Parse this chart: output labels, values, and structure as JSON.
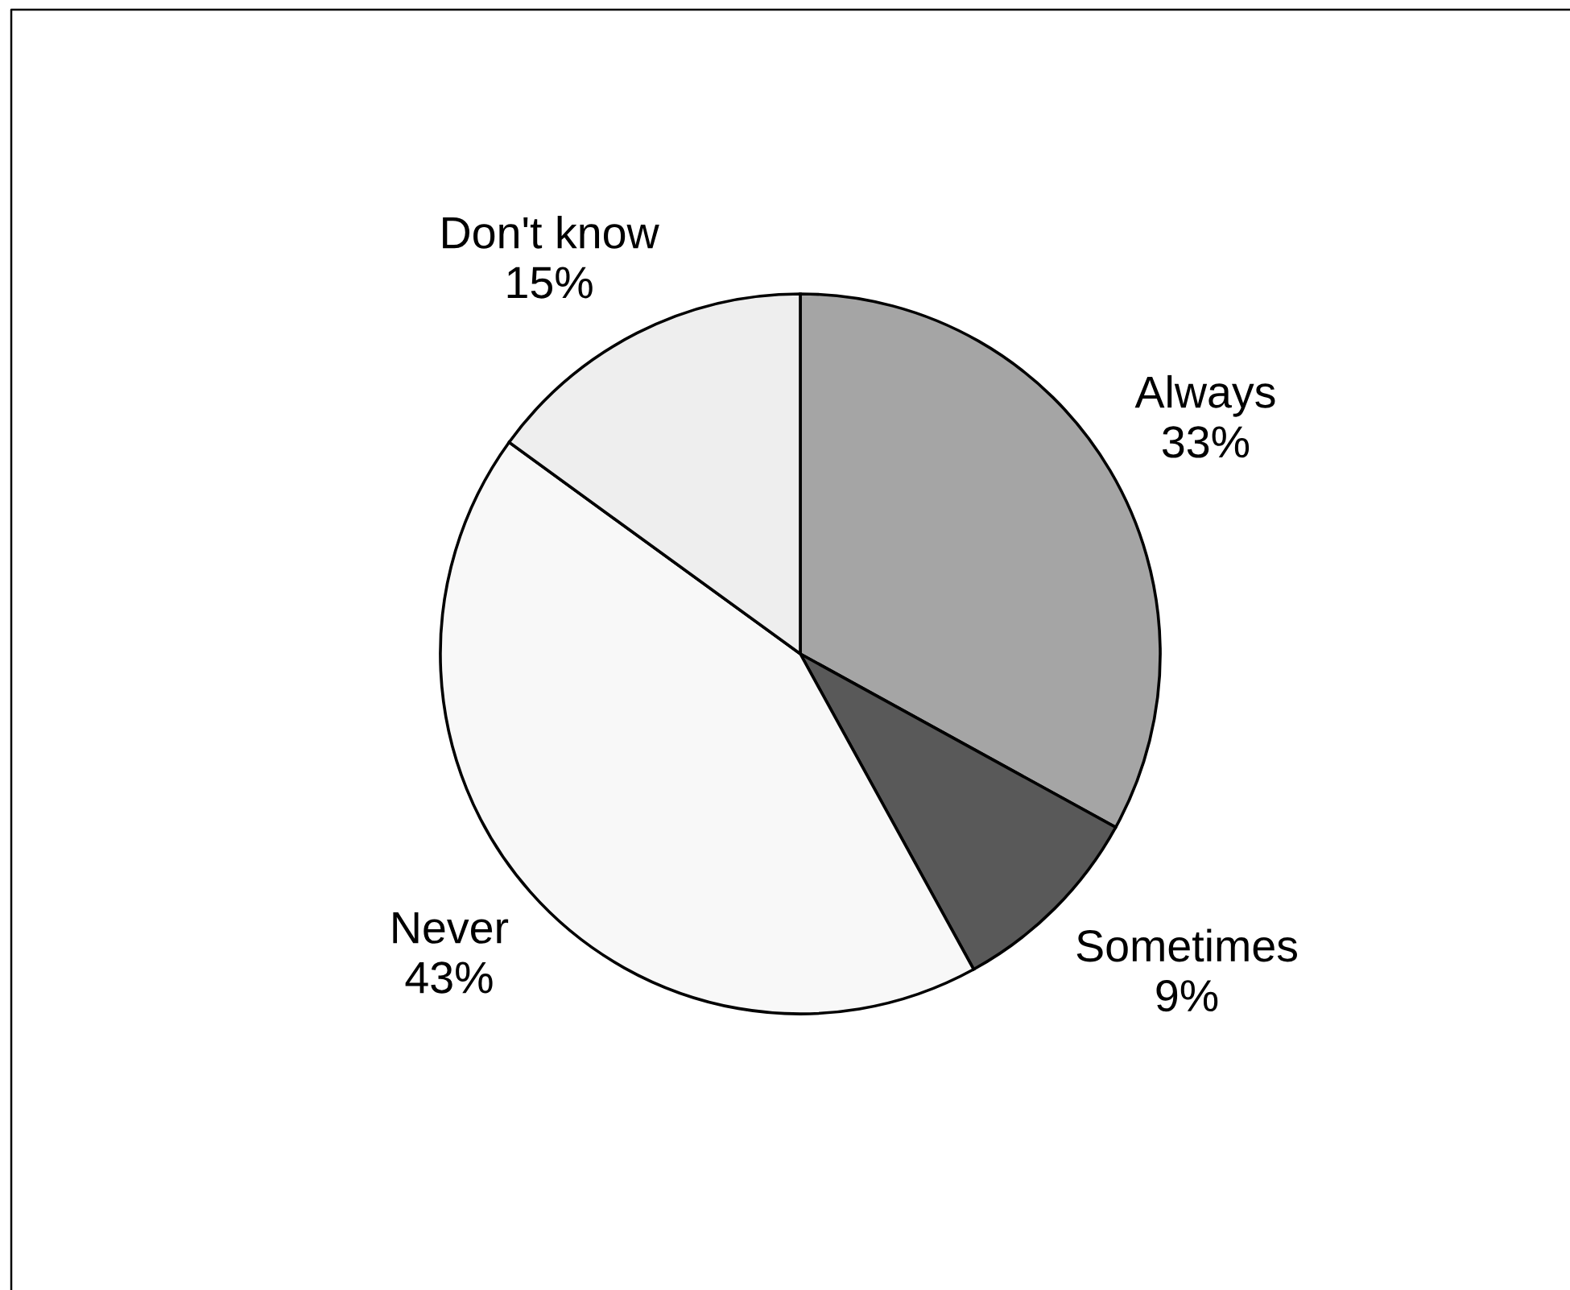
{
  "chart_data": {
    "type": "pie",
    "categories": [
      "Always",
      "Sometimes",
      "Never",
      "Don't know"
    ],
    "values": [
      33,
      9,
      43,
      15
    ],
    "colors": [
      "#a5a5a5",
      "#595959",
      "#f8f8f8",
      "#eeeeee"
    ],
    "value_labels": [
      "33%",
      "9%",
      "43%",
      "15%"
    ]
  }
}
